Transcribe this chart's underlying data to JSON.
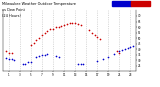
{
  "title": "Milwaukee Weather Outdoor Temperature\nvs Dew Point\n(24 Hours)",
  "background_color": "#ffffff",
  "grid_color": "#bbbbbb",
  "xlim": [
    0,
    24
  ],
  "ylim": [
    20,
    75
  ],
  "yticks": [
    25,
    30,
    35,
    40,
    45,
    50,
    55,
    60,
    65,
    70
  ],
  "xticks": [
    1,
    3,
    5,
    7,
    9,
    11,
    13,
    15,
    17,
    19,
    21,
    23
  ],
  "xlabel_labels": [
    "1",
    "3",
    "5",
    "7",
    "9",
    "11",
    "13",
    "15",
    "17",
    "19",
    "21",
    "23"
  ],
  "temp_color": "#cc0000",
  "dew_color": "#0000cc",
  "temp_x": [
    0.5,
    1.0,
    1.5,
    5.0,
    5.5,
    6.0,
    6.5,
    7.0,
    7.5,
    8.0,
    8.5,
    9.0,
    9.5,
    10.0,
    10.5,
    11.0,
    11.5,
    12.0,
    12.5,
    13.0,
    13.5,
    14.0,
    15.5,
    16.0,
    16.5,
    17.0,
    17.5,
    20.5,
    21.0
  ],
  "temp_y": [
    38,
    37,
    37,
    44,
    46,
    48,
    50,
    53,
    55,
    56,
    58,
    58,
    60,
    60,
    61,
    62,
    63,
    64,
    64,
    64,
    63,
    62,
    57,
    55,
    53,
    51,
    49,
    38,
    37
  ],
  "dew_x": [
    0.5,
    1.0,
    1.5,
    2.0,
    3.5,
    4.0,
    4.5,
    5.0,
    6.0,
    6.5,
    7.0,
    7.5,
    8.0,
    9.5,
    10.0,
    13.5,
    14.0,
    14.5,
    17.0,
    18.0,
    19.0,
    20.0,
    21.0,
    21.5,
    22.0,
    22.5,
    23.0,
    23.5
  ],
  "dew_y": [
    32,
    31,
    31,
    30,
    27,
    27,
    28,
    28,
    33,
    34,
    35,
    35,
    36,
    34,
    33,
    27,
    27,
    27,
    29,
    31,
    33,
    36,
    38,
    39,
    40,
    41,
    42,
    43
  ]
}
